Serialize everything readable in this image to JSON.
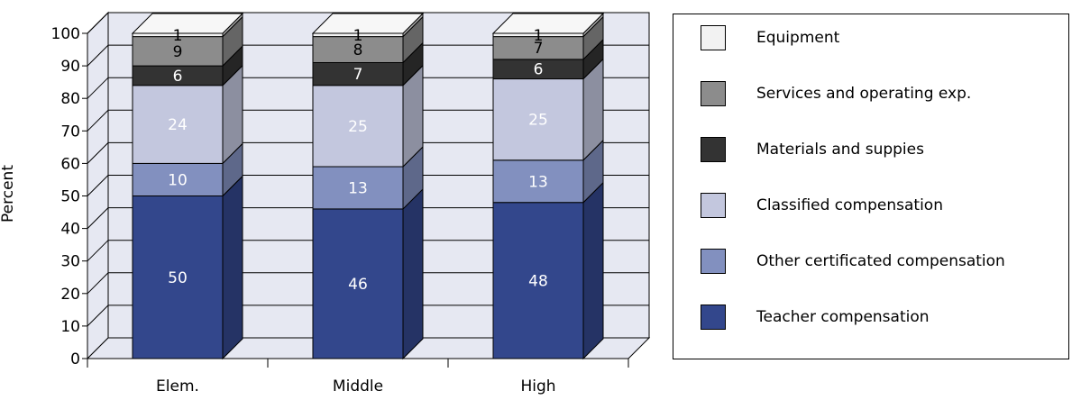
{
  "chart_data": {
    "type": "bar",
    "stacked": true,
    "three_d": true,
    "categories": [
      "Elem.",
      "Middle",
      "High"
    ],
    "series": [
      {
        "name": "Teacher compensation",
        "values": [
          50,
          46,
          48
        ],
        "color": "#33478c",
        "label_color": "#ffffff"
      },
      {
        "name": "Other certificated compensation",
        "values": [
          10,
          13,
          13
        ],
        "color": "#8290bf",
        "label_color": "#ffffff"
      },
      {
        "name": "Classified compensation",
        "values": [
          24,
          25,
          25
        ],
        "color": "#c3c7de",
        "label_color": "#ffffff"
      },
      {
        "name": "Materials and suppies",
        "values": [
          6,
          7,
          6
        ],
        "color": "#333333",
        "label_color": "#ffffff"
      },
      {
        "name": "Services and operating exp.",
        "values": [
          9,
          8,
          7
        ],
        "color": "#8c8c8c",
        "label_color": "#000000"
      },
      {
        "name": "Equipment",
        "values": [
          1,
          1,
          1
        ],
        "color": "#f2f2f2",
        "label_color": "#000000"
      }
    ],
    "ylabel": "Percent",
    "xlabel": "",
    "ylim": [
      0,
      100
    ],
    "yticks": [
      "0",
      "10",
      "20",
      "30",
      "40",
      "50",
      "60",
      "70",
      "80",
      "90",
      "100"
    ],
    "grid": true,
    "legend": "right"
  }
}
